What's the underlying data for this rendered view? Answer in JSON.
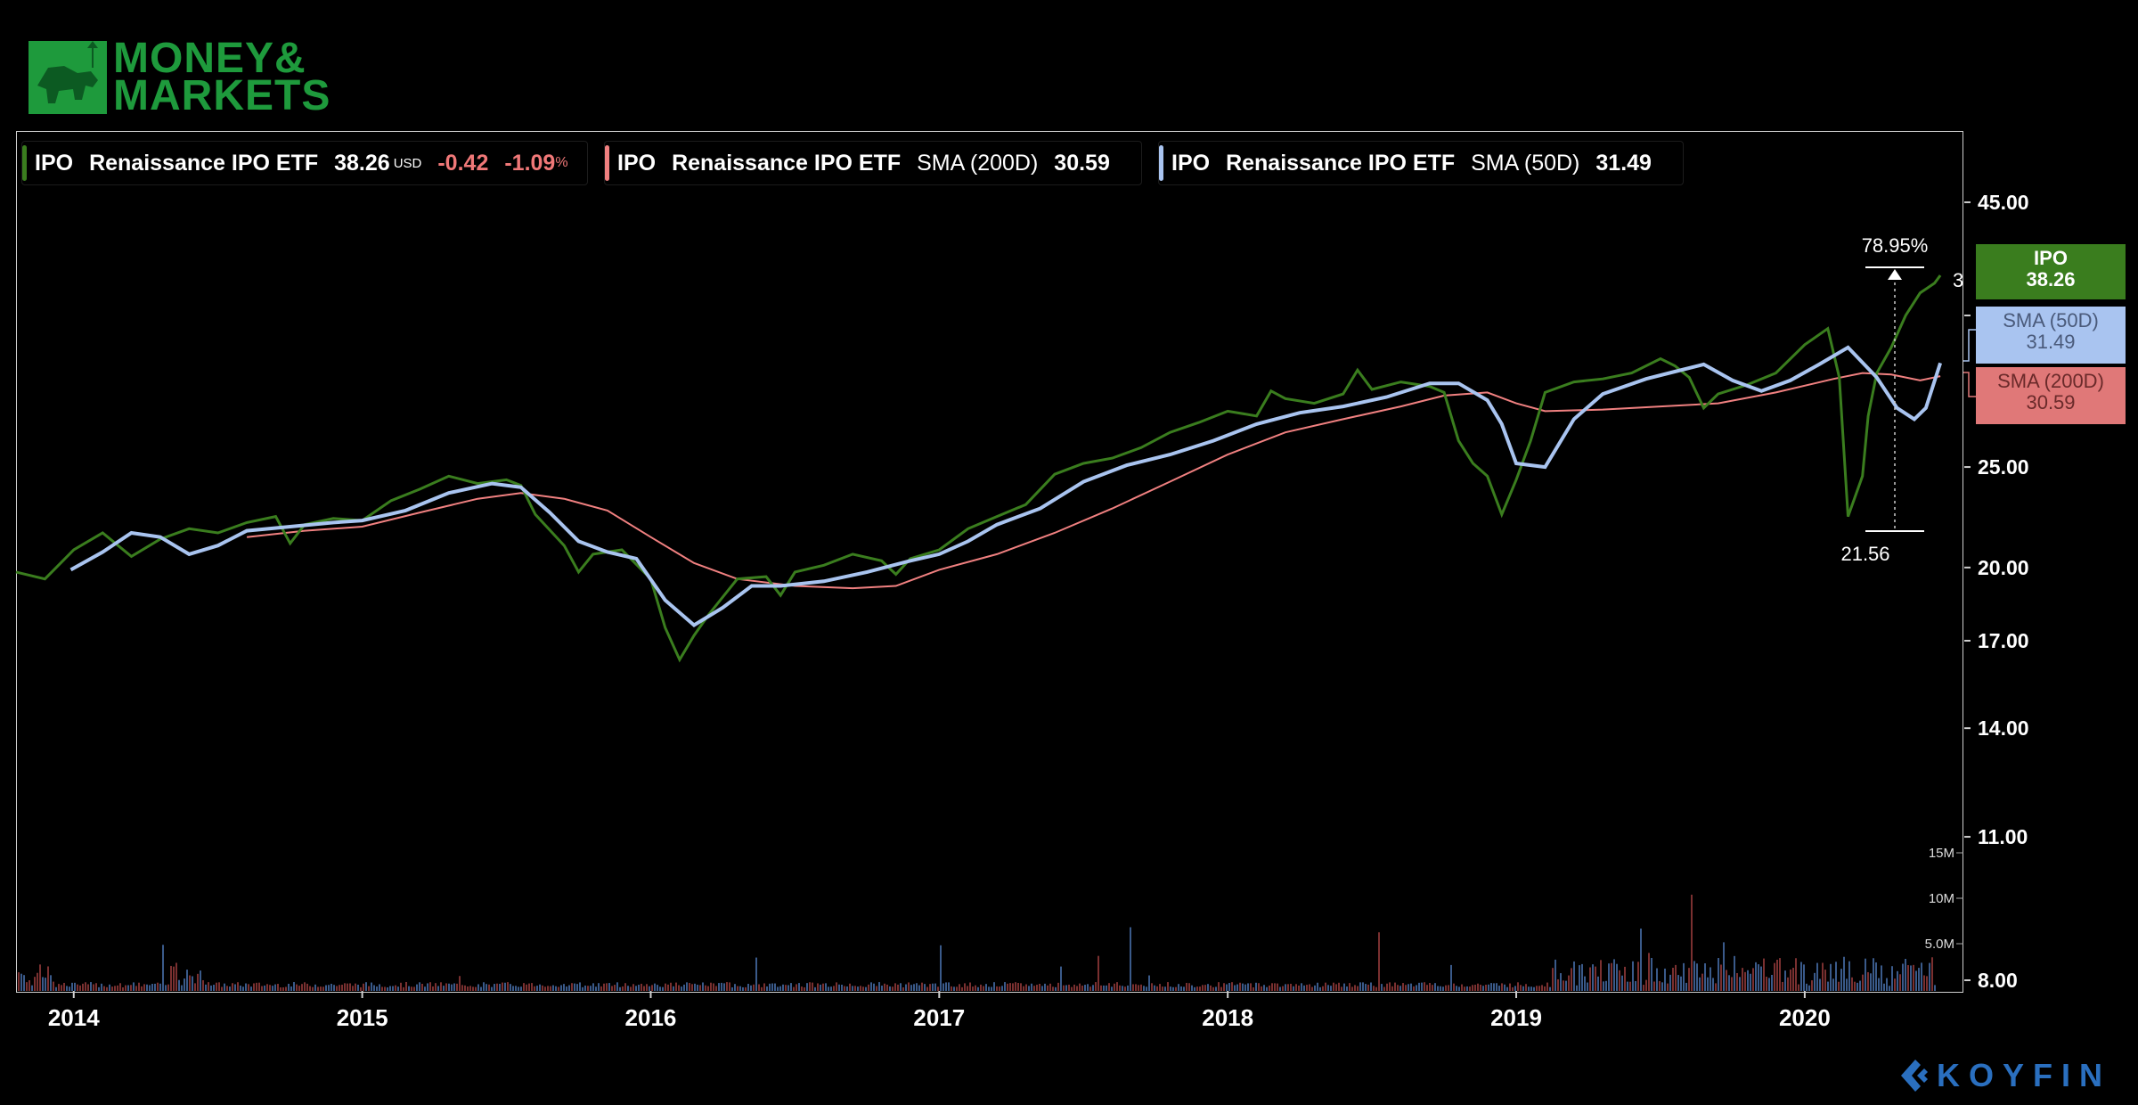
{
  "logo": {
    "line1": "MONEY&",
    "line2": "MARKETS"
  },
  "watermark": "KOYFIN",
  "legend": [
    {
      "ticker": "IPO",
      "name": "Renaissance IPO ETF",
      "price": "38.26",
      "currency": "USD",
      "change": "-0.42",
      "change_pct": "-1.09",
      "pct_sign": "%",
      "color": "#3a7d1e"
    },
    {
      "ticker": "IPO",
      "name": "Renaissance IPO ETF",
      "indicator": "SMA (200D)",
      "value": "30.59",
      "color": "#f08080"
    },
    {
      "ticker": "IPO",
      "name": "Renaissance IPO ETF",
      "indicator": "SMA (50D)",
      "value": "31.49",
      "color": "#a9c4f0"
    }
  ],
  "price_tags": [
    {
      "label": "IPO",
      "value": "38.26",
      "bg": "#3a7d1e",
      "color": "#ffffff"
    },
    {
      "label": "SMA (50D)",
      "value": "31.49",
      "bg": "#a9c4f0",
      "color": "#4a5a7a"
    },
    {
      "label": "SMA (200D)",
      "value": "30.59",
      "bg": "#e07878",
      "color": "#6a2a2a"
    }
  ],
  "colors": {
    "price": "#3a7d1e",
    "sma200": "#f08080",
    "sma50": "#a9c4f0",
    "background": "#000000"
  },
  "chart_data": {
    "type": "line",
    "yscale": "log",
    "ylim": [
      8,
      47
    ],
    "y_ticks": [
      "45.00",
      "25.00",
      "20.00",
      "17.00",
      "14.00",
      "11.00",
      "8.00"
    ],
    "y_ticks_hidden": [
      "35.00"
    ],
    "x_ticks": [
      "2014",
      "2015",
      "2016",
      "2017",
      "2018",
      "2019",
      "2020"
    ],
    "xlim": [
      2013.8,
      2020.55
    ],
    "volume_ticks": [
      "15M",
      "10M",
      "5.0M"
    ],
    "annotation": {
      "high_pct": "78.95%",
      "low": "21.56",
      "partial_label": "3"
    },
    "series": [
      {
        "name": "IPO",
        "x": [
          2013.8,
          2013.9,
          2014.0,
          2014.1,
          2014.2,
          2014.3,
          2014.4,
          2014.5,
          2014.6,
          2014.7,
          2014.75,
          2014.8,
          2014.9,
          2015.0,
          2015.1,
          2015.2,
          2015.3,
          2015.4,
          2015.5,
          2015.55,
          2015.6,
          2015.7,
          2015.75,
          2015.8,
          2015.9,
          2016.0,
          2016.05,
          2016.1,
          2016.15,
          2016.2,
          2016.3,
          2016.4,
          2016.45,
          2016.5,
          2016.6,
          2016.7,
          2016.8,
          2016.85,
          2016.9,
          2017.0,
          2017.1,
          2017.2,
          2017.3,
          2017.4,
          2017.5,
          2017.6,
          2017.7,
          2017.8,
          2017.9,
          2018.0,
          2018.1,
          2018.15,
          2018.2,
          2018.3,
          2018.4,
          2018.45,
          2018.5,
          2018.6,
          2018.7,
          2018.75,
          2018.8,
          2018.85,
          2018.9,
          2018.95,
          2019.0,
          2019.05,
          2019.1,
          2019.2,
          2019.3,
          2019.4,
          2019.5,
          2019.55,
          2019.6,
          2019.65,
          2019.7,
          2019.8,
          2019.9,
          2020.0,
          2020.08,
          2020.12,
          2020.15,
          2020.2,
          2020.22,
          2020.25,
          2020.3,
          2020.35,
          2020.4,
          2020.45,
          2020.47
        ],
        "y": [
          19.8,
          19.5,
          20.8,
          21.6,
          20.5,
          21.3,
          21.8,
          21.6,
          22.1,
          22.4,
          21.1,
          22.0,
          22.3,
          22.2,
          23.2,
          23.8,
          24.5,
          24.1,
          24.3,
          24.0,
          22.5,
          21.0,
          19.8,
          20.6,
          20.8,
          19.5,
          17.5,
          16.3,
          17.2,
          18.0,
          19.5,
          19.6,
          18.8,
          19.8,
          20.1,
          20.6,
          20.3,
          19.7,
          20.4,
          20.8,
          21.8,
          22.4,
          23.0,
          24.6,
          25.2,
          25.5,
          26.1,
          27.0,
          27.6,
          28.3,
          28.0,
          29.6,
          29.1,
          28.8,
          29.4,
          31.0,
          29.7,
          30.2,
          29.9,
          29.5,
          26.5,
          25.2,
          24.5,
          22.5,
          24.3,
          26.5,
          29.5,
          30.2,
          30.4,
          30.8,
          31.8,
          31.3,
          30.5,
          28.5,
          29.4,
          30.0,
          30.8,
          32.8,
          34.0,
          30.5,
          22.4,
          24.5,
          28.0,
          30.8,
          32.6,
          35.0,
          36.8,
          37.6,
          38.26
        ]
      },
      {
        "name": "SMA (200D)",
        "x": [
          2014.6,
          2014.8,
          2015.0,
          2015.2,
          2015.4,
          2015.55,
          2015.7,
          2015.85,
          2016.0,
          2016.15,
          2016.3,
          2016.5,
          2016.7,
          2016.85,
          2017.0,
          2017.2,
          2017.4,
          2017.6,
          2017.8,
          2018.0,
          2018.2,
          2018.4,
          2018.6,
          2018.75,
          2018.9,
          2019.0,
          2019.1,
          2019.3,
          2019.5,
          2019.7,
          2019.9,
          2020.1,
          2020.2,
          2020.3,
          2020.4,
          2020.47
        ],
        "y": [
          21.4,
          21.7,
          21.9,
          22.6,
          23.3,
          23.6,
          23.3,
          22.7,
          21.4,
          20.2,
          19.5,
          19.2,
          19.1,
          19.2,
          19.9,
          20.6,
          21.6,
          22.8,
          24.2,
          25.7,
          27.0,
          27.8,
          28.6,
          29.3,
          29.5,
          28.8,
          28.3,
          28.4,
          28.6,
          28.8,
          29.5,
          30.4,
          30.8,
          30.7,
          30.3,
          30.59
        ]
      },
      {
        "name": "SMA (50D)",
        "x": [
          2013.99,
          2014.1,
          2014.2,
          2014.3,
          2014.4,
          2014.5,
          2014.6,
          2014.75,
          2014.9,
          2015.0,
          2015.15,
          2015.3,
          2015.45,
          2015.55,
          2015.65,
          2015.75,
          2015.85,
          2015.95,
          2016.05,
          2016.15,
          2016.25,
          2016.35,
          2016.45,
          2016.6,
          2016.75,
          2016.9,
          2017.0,
          2017.1,
          2017.2,
          2017.35,
          2017.5,
          2017.65,
          2017.8,
          2017.95,
          2018.1,
          2018.25,
          2018.4,
          2018.55,
          2018.7,
          2018.8,
          2018.9,
          2018.95,
          2019.0,
          2019.1,
          2019.2,
          2019.3,
          2019.45,
          2019.55,
          2019.65,
          2019.75,
          2019.85,
          2019.95,
          2020.05,
          2020.15,
          2020.25,
          2020.32,
          2020.38,
          2020.42,
          2020.47
        ],
        "y": [
          19.9,
          20.7,
          21.6,
          21.4,
          20.6,
          21.0,
          21.7,
          21.9,
          22.1,
          22.2,
          22.7,
          23.6,
          24.1,
          23.9,
          22.6,
          21.2,
          20.7,
          20.4,
          18.6,
          17.6,
          18.3,
          19.2,
          19.2,
          19.4,
          19.8,
          20.3,
          20.6,
          21.2,
          22.0,
          22.8,
          24.2,
          25.1,
          25.7,
          26.5,
          27.5,
          28.2,
          28.6,
          29.2,
          30.1,
          30.1,
          29.0,
          27.5,
          25.2,
          25.0,
          27.8,
          29.4,
          30.4,
          30.9,
          31.4,
          30.3,
          29.6,
          30.3,
          31.4,
          32.6,
          30.5,
          28.5,
          27.8,
          28.5,
          31.49
        ]
      }
    ]
  }
}
